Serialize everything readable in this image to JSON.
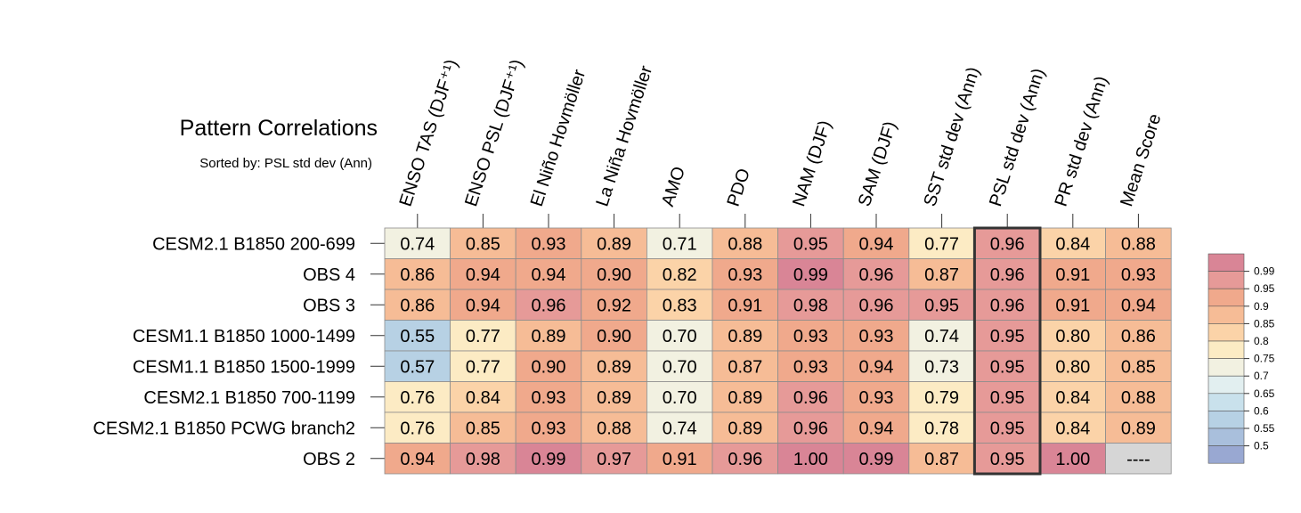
{
  "chart_data": {
    "type": "heatmap",
    "title": "Pattern Correlations",
    "subtitle": "Sorted by: PSL std dev (Ann)",
    "columns": [
      "ENSO TAS (DJF⁺¹)",
      "ENSO PSL (DJF⁺¹)",
      "El Niño Hovmöller",
      "La Niña Hovmöller",
      "AMO",
      "PDO",
      "NAM (DJF)",
      "SAM (DJF)",
      "SST std dev (Ann)",
      "PSL std dev (Ann)",
      "PR std dev (Ann)",
      "Mean Score"
    ],
    "rows": [
      "CESM2.1 B1850 200-699",
      "OBS 4",
      "OBS 3",
      "CESM1.1 B1850 1000-1499",
      "CESM1.1 B1850 1500-1999",
      "CESM2.1 B1850 700-1199",
      "CESM2.1 B1850 PCWG branch2",
      "OBS 2"
    ],
    "values": [
      [
        "0.74",
        "0.85",
        "0.93",
        "0.89",
        "0.71",
        "0.88",
        "0.95",
        "0.94",
        "0.77",
        "0.96",
        "0.84",
        "0.88"
      ],
      [
        "0.86",
        "0.94",
        "0.94",
        "0.90",
        "0.82",
        "0.93",
        "0.99",
        "0.96",
        "0.87",
        "0.96",
        "0.91",
        "0.93"
      ],
      [
        "0.86",
        "0.94",
        "0.96",
        "0.92",
        "0.83",
        "0.91",
        "0.98",
        "0.96",
        "0.95",
        "0.96",
        "0.91",
        "0.94"
      ],
      [
        "0.55",
        "0.77",
        "0.89",
        "0.90",
        "0.70",
        "0.89",
        "0.93",
        "0.93",
        "0.74",
        "0.95",
        "0.80",
        "0.86"
      ],
      [
        "0.57",
        "0.77",
        "0.90",
        "0.89",
        "0.70",
        "0.87",
        "0.93",
        "0.94",
        "0.73",
        "0.95",
        "0.80",
        "0.85"
      ],
      [
        "0.76",
        "0.84",
        "0.93",
        "0.89",
        "0.70",
        "0.89",
        "0.96",
        "0.93",
        "0.79",
        "0.95",
        "0.84",
        "0.88"
      ],
      [
        "0.76",
        "0.85",
        "0.93",
        "0.88",
        "0.74",
        "0.89",
        "0.96",
        "0.94",
        "0.78",
        "0.95",
        "0.84",
        "0.89"
      ],
      [
        "0.94",
        "0.98",
        "0.99",
        "0.97",
        "0.91",
        "0.96",
        "1.00",
        "0.99",
        "0.87",
        "0.95",
        "1.00",
        "----"
      ]
    ],
    "highlight_column": "PSL std dev (Ann)",
    "missing_color": "#d6d6d6",
    "colorbar": {
      "ticks": [
        "0.99",
        "0.95",
        "0.9",
        "0.85",
        "0.8",
        "0.75",
        "0.7",
        "0.65",
        "0.6",
        "0.55",
        "0.5"
      ],
      "colors_top_to_bottom": [
        "#d98596",
        "#e69a98",
        "#f0a98c",
        "#f6bc96",
        "#fbd3a8",
        "#fcebc4",
        "#f2f1e1",
        "#e2eff0",
        "#c9e1ec",
        "#b7d1e4",
        "#a9bfdc",
        "#99a8d2"
      ]
    }
  }
}
